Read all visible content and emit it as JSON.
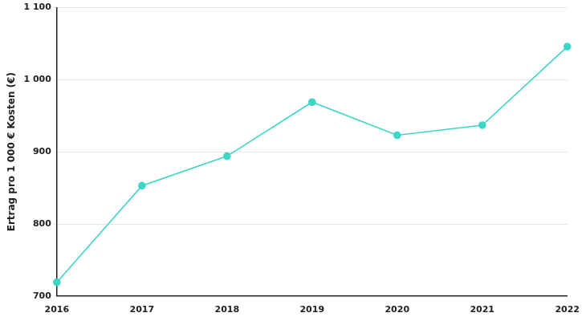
{
  "chart_data": {
    "type": "line",
    "y_label": "Ertrag pro 1 000 € Kosten (€)",
    "categories": [
      "2016",
      "2017",
      "2018",
      "2019",
      "2020",
      "2021",
      "2022"
    ],
    "values": [
      719,
      853,
      894,
      969,
      923,
      937,
      1046
    ],
    "color": "#3dd6c6",
    "ylim": [
      700,
      1100
    ],
    "yticks": [
      700,
      800,
      900,
      {
        "value": 1000,
        "label": "1 000"
      },
      {
        "value": 1100,
        "label": "1 100"
      }
    ],
    "grid": true,
    "marker": "circle"
  }
}
